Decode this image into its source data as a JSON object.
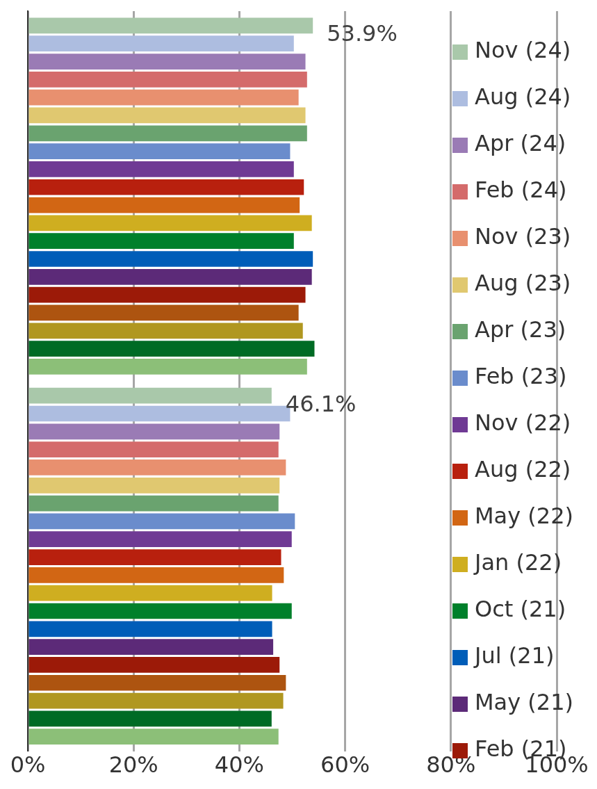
{
  "chart_data": {
    "type": "bar",
    "orientation": "horizontal",
    "categories": [
      null,
      null
    ],
    "series": [
      {
        "name": "Nov (24)",
        "color": "#a9c8aa",
        "values": [
          53.9,
          46.1
        ],
        "value_labels": [
          "53.9%",
          "46.1%"
        ]
      },
      {
        "name": "Aug (24)",
        "color": "#adbde0",
        "values": [
          50.3,
          49.6
        ]
      },
      {
        "name": "Apr (24)",
        "color": "#9a7bb5",
        "values": [
          52.5,
          47.6
        ]
      },
      {
        "name": "Feb (24)",
        "color": "#d46b6b",
        "values": [
          52.8,
          47.4
        ]
      },
      {
        "name": "Nov (23)",
        "color": "#e8906f",
        "values": [
          51.2,
          48.8
        ]
      },
      {
        "name": "Aug (23)",
        "color": "#e0c870",
        "values": [
          52.5,
          47.6
        ]
      },
      {
        "name": "Apr (23)",
        "color": "#6aa36f",
        "values": [
          52.8,
          47.4
        ]
      },
      {
        "name": "Feb (23)",
        "color": "#6a8ccc",
        "values": [
          49.6,
          50.5
        ]
      },
      {
        "name": "Nov (22)",
        "color": "#6f3a94",
        "values": [
          50.3,
          49.9
        ]
      },
      {
        "name": "Aug (22)",
        "color": "#b8200e",
        "values": [
          52.2,
          47.9
        ]
      },
      {
        "name": "May (22)",
        "color": "#d26614",
        "values": [
          51.4,
          48.4
        ]
      },
      {
        "name": "Jan (22)",
        "color": "#cfae20",
        "values": [
          53.7,
          46.2
        ]
      },
      {
        "name": "Oct (21)",
        "color": "#00802b",
        "values": [
          50.3,
          49.9
        ]
      },
      {
        "name": "Jul (21)",
        "color": "#005db8",
        "values": [
          53.9,
          46.2
        ]
      },
      {
        "name": "May (21)",
        "color": "#5c2a78",
        "values": [
          53.7,
          46.4
        ]
      },
      {
        "name": "Feb (21)",
        "color": "#9c1a08",
        "values": [
          52.5,
          47.6
        ]
      },
      {
        "color": "#ad5410",
        "values": [
          51.2,
          48.8
        ]
      },
      {
        "color": "#b09720",
        "values": [
          52.0,
          48.3
        ]
      },
      {
        "color": "#006b25",
        "values": [
          54.2,
          46.1
        ]
      },
      {
        "color": "#8cbf78",
        "values": [
          52.8,
          47.4
        ]
      }
    ],
    "xlim": [
      0,
      100
    ],
    "xticks": [
      {
        "value": 0,
        "label": "0%"
      },
      {
        "value": 20,
        "label": "20%"
      },
      {
        "value": 40,
        "label": "40%"
      },
      {
        "value": 60,
        "label": "60%"
      },
      {
        "value": 80,
        "label": "80%"
      },
      {
        "value": 100,
        "label": "100%"
      }
    ],
    "grid": "x",
    "legend": "right"
  }
}
